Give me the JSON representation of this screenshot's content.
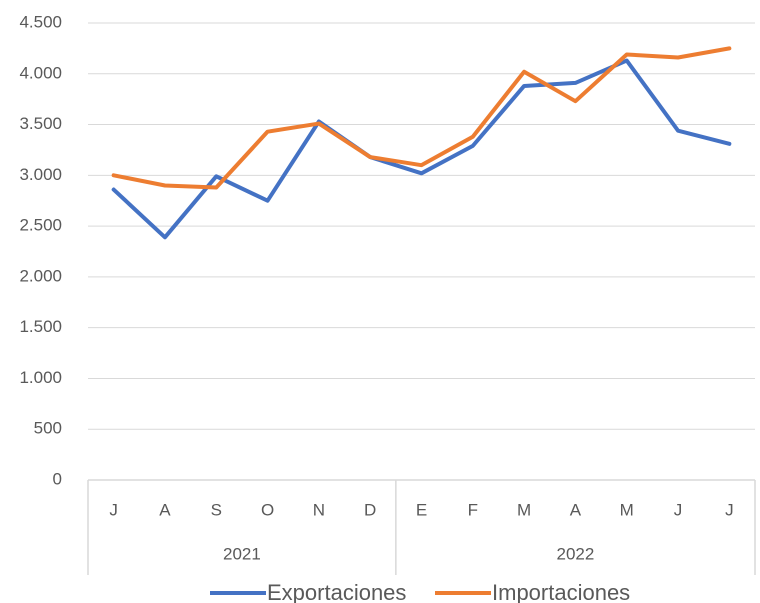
{
  "chart_data": {
    "type": "line",
    "categories": [
      "J",
      "A",
      "S",
      "O",
      "N",
      "D",
      "E",
      "F",
      "M",
      "A",
      "M",
      "J",
      "J"
    ],
    "groups": [
      {
        "label": "2021",
        "span": 6
      },
      {
        "label": "2022",
        "span": 7
      }
    ],
    "series": [
      {
        "name": "Exportaciones",
        "color": "#4472c4",
        "values": [
          2860,
          2390,
          2990,
          2750,
          3530,
          3180,
          3020,
          3290,
          3880,
          3910,
          4130,
          3440,
          3310
        ]
      },
      {
        "name": "Importaciones",
        "color": "#ed7d31",
        "values": [
          3000,
          2900,
          2880,
          3430,
          3510,
          3180,
          3100,
          3380,
          4020,
          3730,
          4190,
          4160,
          4250
        ]
      }
    ],
    "ylim": [
      0,
      4500
    ],
    "yticks": [
      0,
      500,
      {
        "value": 1000,
        "label": "1.000"
      },
      {
        "value": 1500,
        "label": "1.500"
      },
      {
        "value": 2000,
        "label": "2.000"
      },
      {
        "value": 2500,
        "label": "2.500"
      },
      {
        "value": 3000,
        "label": "3.000"
      },
      {
        "value": 3500,
        "label": "3.500"
      },
      {
        "value": 4000,
        "label": "4.000"
      },
      {
        "value": 4500,
        "label": "4.500"
      }
    ],
    "grid": true,
    "legend": "bottom"
  }
}
